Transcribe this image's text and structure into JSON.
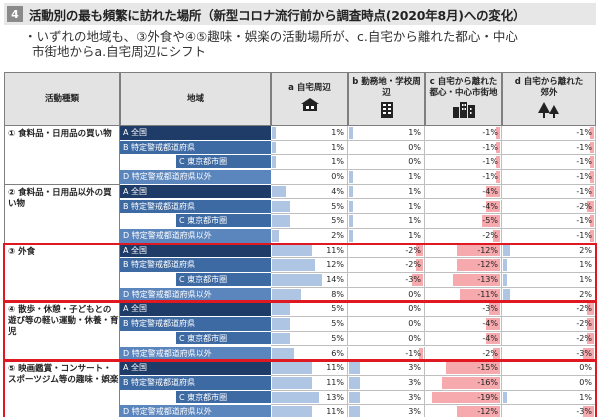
{
  "header": {
    "number": "4",
    "title": "活動別の最も頻繁に訪れた場所（新型コロナ流行前から調査時点(2020年8月)への変化）"
  },
  "note": {
    "line1": "・いずれの地域も、③外食や④⑤趣味・娯楽の活動場所が、c.自宅から離れた都心・中心",
    "line2": "市街地からa.自宅周辺にシフト"
  },
  "table": {
    "col_activity": "活動種類",
    "col_region": "地域",
    "columns": [
      {
        "label1": "a 自宅周辺",
        "label2": "",
        "icon": "house-icon"
      },
      {
        "label1": "b 勤務地・学校周辺",
        "label2": "",
        "icon": "office-building-icon"
      },
      {
        "label1": "c 自宅から離れた",
        "label2": "都心・中心市街地",
        "icon": "downtown-buildings-icon"
      },
      {
        "label1": "d 自宅から離れた",
        "label2": "郊外",
        "icon": "trees-icon"
      }
    ],
    "regions": [
      "A 全国",
      "B 特定警戒都道府県",
      "C 東京都市圏",
      "D 特定警戒都道府県以外"
    ],
    "groups": [
      {
        "label": "① 食料品・日用品の買い物",
        "rows": [
          [
            1,
            1,
            -1,
            -1
          ],
          [
            1,
            0,
            -1,
            -1
          ],
          [
            1,
            0,
            -1,
            -1
          ],
          [
            0,
            1,
            -1,
            -1
          ]
        ]
      },
      {
        "label": "② 食料品・日用品以外の買い物",
        "rows": [
          [
            4,
            1,
            -4,
            -1
          ],
          [
            5,
            1,
            -4,
            -2
          ],
          [
            5,
            1,
            -5,
            -1
          ],
          [
            2,
            1,
            -2,
            -1
          ]
        ]
      },
      {
        "label": "③ 外食",
        "rows": [
          [
            11,
            -2,
            -12,
            2
          ],
          [
            12,
            -2,
            -12,
            1
          ],
          [
            14,
            -3,
            -13,
            1
          ],
          [
            8,
            0,
            -11,
            2
          ]
        ]
      },
      {
        "label": "④ 散歩・休憩・子どもとの遊び等の軽い運動・休養・育児",
        "rows": [
          [
            5,
            0,
            -3,
            -2
          ],
          [
            5,
            0,
            -4,
            -2
          ],
          [
            5,
            0,
            -4,
            -2
          ],
          [
            6,
            -1,
            -2,
            -3
          ]
        ]
      },
      {
        "label": "⑤ 映画鑑賞・コンサート・スポーツジム等の趣味・娯楽",
        "rows": [
          [
            11,
            3,
            -15,
            0
          ],
          [
            11,
            3,
            -16,
            0
          ],
          [
            13,
            3,
            -19,
            1
          ],
          [
            11,
            3,
            -12,
            -3
          ]
        ]
      }
    ],
    "highlighted_groups": [
      2,
      3,
      4
    ],
    "colors": {
      "positive_bar": "#aec6e4",
      "negative_bar": "#f6aaae",
      "highlight": "#e01822",
      "region_a": "#1f3b67",
      "region_b": "#3e6aa3",
      "region_d": "#5b85bd"
    }
  }
}
